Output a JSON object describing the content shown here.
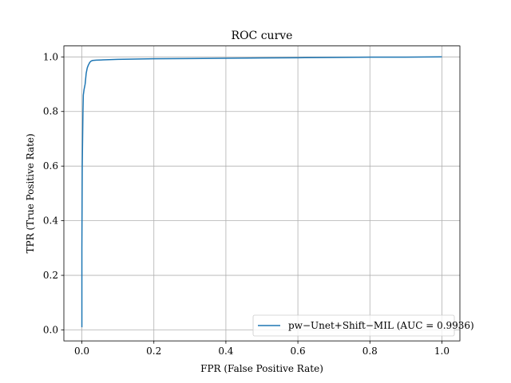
{
  "chart_data": {
    "type": "line",
    "title": "ROC curve",
    "xlabel": "FPR (False Positive Rate)",
    "ylabel": "TPR (True Positive Rate)",
    "xlim": [
      -0.05,
      1.05
    ],
    "ylim": [
      -0.04,
      1.04
    ],
    "xticks": [
      "0.0",
      "0.2",
      "0.4",
      "0.6",
      "0.8",
      "1.0"
    ],
    "yticks": [
      "0.0",
      "0.2",
      "0.4",
      "0.6",
      "0.8",
      "1.0"
    ],
    "grid": true,
    "legend_position": "lower-right",
    "series": [
      {
        "name": "pw−Unet+Shift−MIL (AUC = 0.9936)",
        "color": "#1f77b4",
        "x": [
          0.0,
          0.0,
          0.001,
          0.002,
          0.003,
          0.004,
          0.006,
          0.009,
          0.012,
          0.015,
          0.018,
          0.022,
          0.026,
          0.03,
          0.04,
          0.06,
          0.1,
          0.2,
          0.3,
          0.4,
          0.5,
          0.6,
          0.7,
          0.8,
          0.9,
          1.0
        ],
        "y": [
          0.01,
          0.3,
          0.6,
          0.7,
          0.8,
          0.86,
          0.88,
          0.9,
          0.94,
          0.96,
          0.97,
          0.98,
          0.985,
          0.987,
          0.988,
          0.989,
          0.991,
          0.993,
          0.994,
          0.995,
          0.996,
          0.997,
          0.998,
          0.999,
          0.999,
          1.0
        ]
      }
    ]
  }
}
